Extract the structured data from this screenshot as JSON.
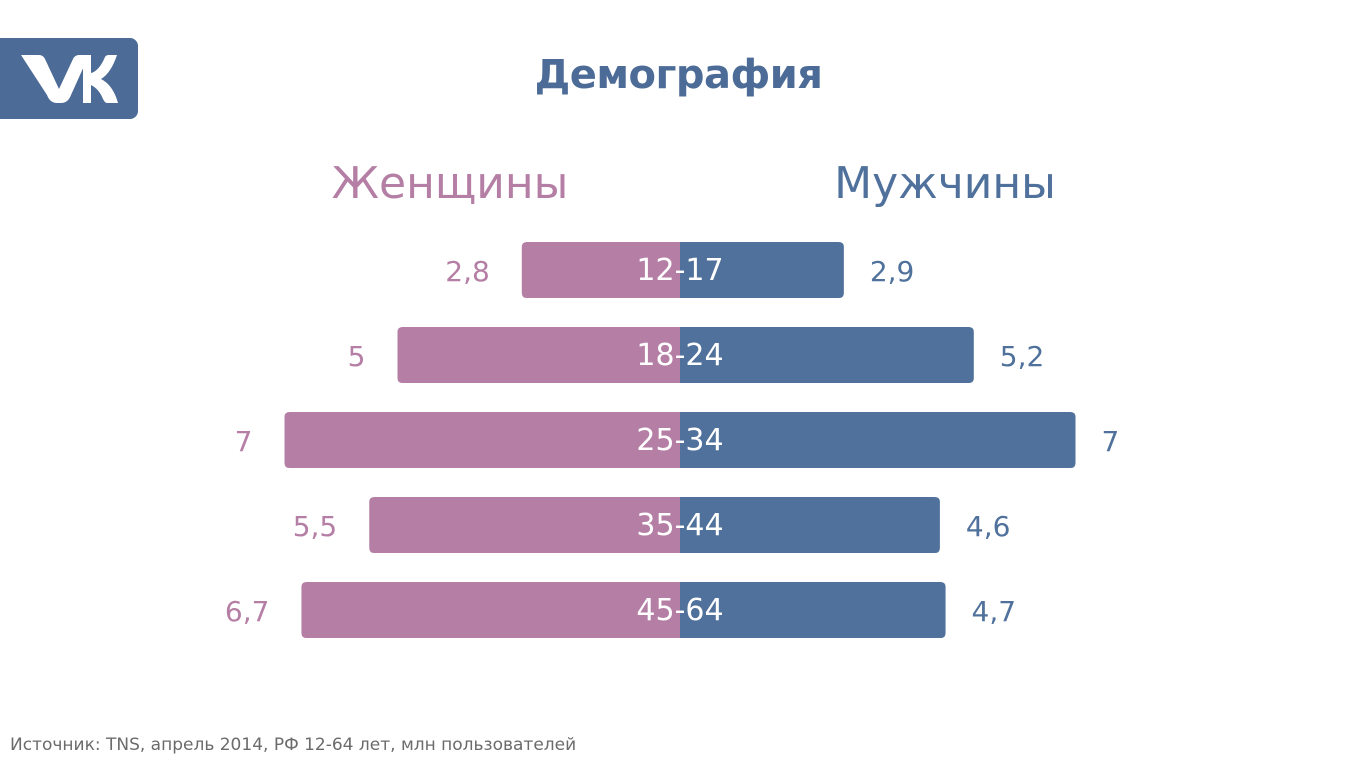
{
  "title": "Демография",
  "logo": {
    "icon": "vk-logo-icon",
    "color": "#4c6c97"
  },
  "source": "Источник: TNS, апрель 2014, РФ 12-64 лет, млн пользователей",
  "chart_data": {
    "type": "bar",
    "orientation": "horizontal-diverging",
    "categories": [
      "12-17",
      "18-24",
      "25-34",
      "35-44",
      "45-64"
    ],
    "series": [
      {
        "name": "Женщины",
        "side": "left",
        "color": "#b57fa5",
        "values": [
          2.8,
          5,
          7,
          5.5,
          6.7
        ],
        "labels": [
          "2,8",
          "5",
          "7",
          "5,5",
          "6,7"
        ]
      },
      {
        "name": "Мужчины",
        "side": "right",
        "color": "#4f719b",
        "values": [
          2.9,
          5.2,
          7,
          4.6,
          4.7
        ],
        "labels": [
          "2,9",
          "5,2",
          "7",
          "4,6",
          "4,7"
        ]
      }
    ],
    "title": "",
    "xlabel": "",
    "ylabel": "",
    "grid": false,
    "legend": "top"
  }
}
